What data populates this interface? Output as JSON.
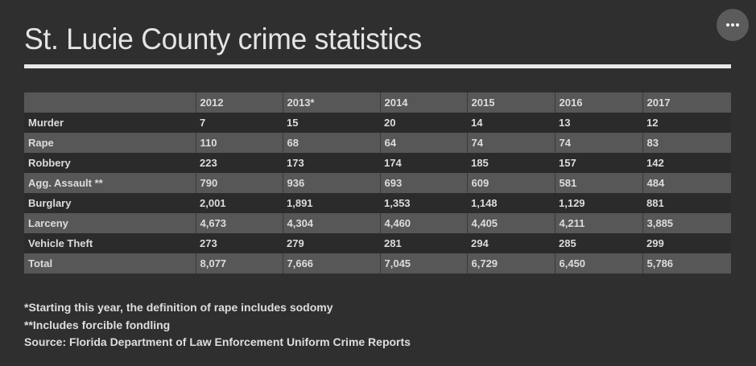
{
  "header": {
    "title": "St. Lucie County crime statistics",
    "more_button": "more-options-icon"
  },
  "table": {
    "columns": [
      "",
      "2012",
      "2013*",
      "2014",
      "2015",
      "2016",
      "2017"
    ],
    "rows": [
      {
        "label": "Murder",
        "values": [
          "7",
          "15",
          "20",
          "14",
          "13",
          "12"
        ]
      },
      {
        "label": "Rape",
        "values": [
          "110",
          "68",
          "64",
          "74",
          "74",
          "83"
        ]
      },
      {
        "label": "Robbery",
        "values": [
          "223",
          "173",
          "174",
          "185",
          "157",
          "142"
        ]
      },
      {
        "label": "Agg. Assault **",
        "values": [
          "790",
          "936",
          "693",
          "609",
          "581",
          "484"
        ]
      },
      {
        "label": "Burglary",
        "values": [
          "2,001",
          "1,891",
          "1,353",
          "1,148",
          "1,129",
          "881"
        ]
      },
      {
        "label": "Larceny",
        "values": [
          "4,673",
          "4,304",
          "4,460",
          "4,405",
          "4,211",
          "3,885"
        ]
      },
      {
        "label": "Vehicle Theft",
        "values": [
          "273",
          "279",
          "281",
          "294",
          "285",
          "299"
        ]
      },
      {
        "label": "Total",
        "values": [
          "8,077",
          "7,666",
          "7,045",
          "6,729",
          "6,450",
          "5,786"
        ]
      }
    ]
  },
  "notes": [
    "*Starting this year, the definition of rape includes sodomy",
    "**Includes forcible fondling",
    "Source: Florida Department of Law Enforcement Uniform Crime Reports"
  ],
  "colors": {
    "background": "#2f2f2f",
    "row_shade": "#575757",
    "row_dark": "#2b2b2b",
    "text": "#dcdcdc",
    "rule": "#e8e8e8"
  }
}
